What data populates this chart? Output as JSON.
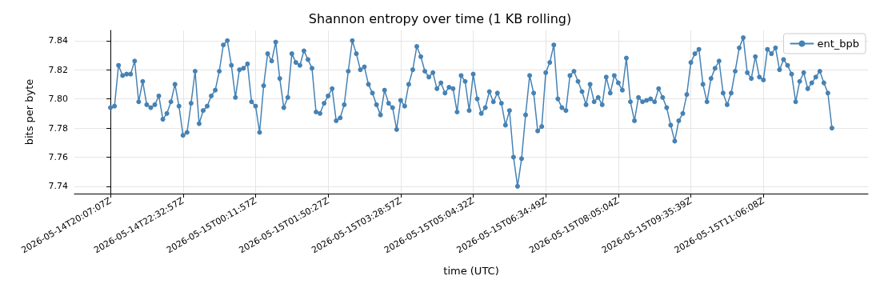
{
  "chart_data": {
    "type": "line",
    "title": "Shannon entropy over time (1 KB rolling)",
    "xlabel": "time (UTC)",
    "ylabel": "bits per byte",
    "categories": [
      "2026-05-14T20:07:07Z",
      null,
      null,
      null,
      null,
      null,
      null,
      null,
      null,
      null,
      null,
      null,
      null,
      null,
      null,
      null,
      null,
      null,
      "2026-05-14T22:32:57Z",
      null,
      null,
      null,
      null,
      null,
      null,
      null,
      null,
      null,
      null,
      null,
      null,
      null,
      null,
      null,
      null,
      null,
      "2026-05-15T00:11:57Z",
      null,
      null,
      null,
      null,
      null,
      null,
      null,
      null,
      null,
      null,
      null,
      null,
      null,
      null,
      null,
      null,
      null,
      "2026-05-15T01:50:27Z",
      null,
      null,
      null,
      null,
      null,
      null,
      null,
      null,
      null,
      null,
      null,
      null,
      null,
      null,
      null,
      null,
      null,
      "2026-05-15T03:28:57Z",
      null,
      null,
      null,
      null,
      null,
      null,
      null,
      null,
      null,
      null,
      null,
      null,
      null,
      null,
      null,
      null,
      null,
      "2026-05-15T05:04:32Z",
      null,
      null,
      null,
      null,
      null,
      null,
      null,
      null,
      null,
      null,
      null,
      null,
      null,
      null,
      null,
      null,
      null,
      "2026-05-15T06:34:49Z",
      null,
      null,
      null,
      null,
      null,
      null,
      null,
      null,
      null,
      null,
      null,
      null,
      null,
      null,
      null,
      null,
      null,
      "2026-05-15T08:05:04Z",
      null,
      null,
      null,
      null,
      null,
      null,
      null,
      null,
      null,
      null,
      null,
      null,
      null,
      null,
      null,
      null,
      null,
      "2026-05-15T09:35:39Z",
      null,
      null,
      null,
      null,
      null,
      null,
      null,
      null,
      null,
      null,
      null,
      null,
      null,
      null,
      null,
      null,
      null,
      "2026-05-15T11:06:08Z",
      null,
      null,
      null,
      null,
      null,
      null,
      null,
      null,
      null,
      null,
      null,
      null,
      null,
      null,
      null,
      null,
      null
    ],
    "series": [
      {
        "name": "ent_bpb",
        "color": "#4682b4",
        "values": [
          7.794,
          7.795,
          7.823,
          7.816,
          7.817,
          7.817,
          7.826,
          7.798,
          7.812,
          7.796,
          7.794,
          7.796,
          7.802,
          7.786,
          7.79,
          7.798,
          7.81,
          7.795,
          7.775,
          7.777,
          7.797,
          7.819,
          7.783,
          7.792,
          7.795,
          7.802,
          7.806,
          7.819,
          7.837,
          7.84,
          7.823,
          7.801,
          7.82,
          7.821,
          7.824,
          7.798,
          7.795,
          7.777,
          7.809,
          7.831,
          7.826,
          7.839,
          7.814,
          7.794,
          7.801,
          7.831,
          7.825,
          7.823,
          7.833,
          7.827,
          7.821,
          7.791,
          7.79,
          7.797,
          7.802,
          7.807,
          7.785,
          7.787,
          7.796,
          7.819,
          7.84,
          7.831,
          7.82,
          7.822,
          7.81,
          7.804,
          7.796,
          7.789,
          7.806,
          7.797,
          7.794,
          7.779,
          7.799,
          7.795,
          7.81,
          7.82,
          7.836,
          7.829,
          7.819,
          7.815,
          7.818,
          7.807,
          7.811,
          7.804,
          7.808,
          7.807,
          7.791,
          7.816,
          7.812,
          7.792,
          7.817,
          7.8,
          7.79,
          7.794,
          7.805,
          7.798,
          7.804,
          7.797,
          7.782,
          7.792,
          7.76,
          7.74,
          7.759,
          7.789,
          7.816,
          7.804,
          7.778,
          7.781,
          7.818,
          7.825,
          7.837,
          7.8,
          7.794,
          7.792,
          7.816,
          7.819,
          7.812,
          7.805,
          7.796,
          7.81,
          7.798,
          7.801,
          7.796,
          7.815,
          7.804,
          7.816,
          7.811,
          7.806,
          7.828,
          7.798,
          7.785,
          7.801,
          7.798,
          7.799,
          7.8,
          7.798,
          7.807,
          7.801,
          7.794,
          7.782,
          7.771,
          7.785,
          7.79,
          7.803,
          7.825,
          7.831,
          7.834,
          7.81,
          7.798,
          7.814,
          7.821,
          7.826,
          7.804,
          7.796,
          7.804,
          7.819,
          7.835,
          7.842,
          7.818,
          7.814,
          7.829,
          7.815,
          7.813,
          7.834,
          7.831,
          7.835,
          7.82,
          7.827,
          7.823,
          7.817,
          7.798,
          7.812,
          7.818,
          7.807,
          7.811,
          7.815,
          7.819,
          7.811,
          7.804,
          7.78
        ]
      }
    ],
    "ylim": [
      7.735,
      7.847
    ],
    "yticks": [
      {
        "value": 7.74,
        "label": "7.74"
      },
      {
        "value": 7.76,
        "label": "7.76"
      },
      {
        "value": 7.78,
        "label": "7.78"
      },
      {
        "value": 7.8,
        "label": "7.80"
      },
      {
        "value": 7.82,
        "label": "7.82"
      },
      {
        "value": 7.84,
        "label": "7.84"
      }
    ],
    "grid": true,
    "legend": "top right",
    "marker": "circle",
    "line_style": "solid"
  }
}
